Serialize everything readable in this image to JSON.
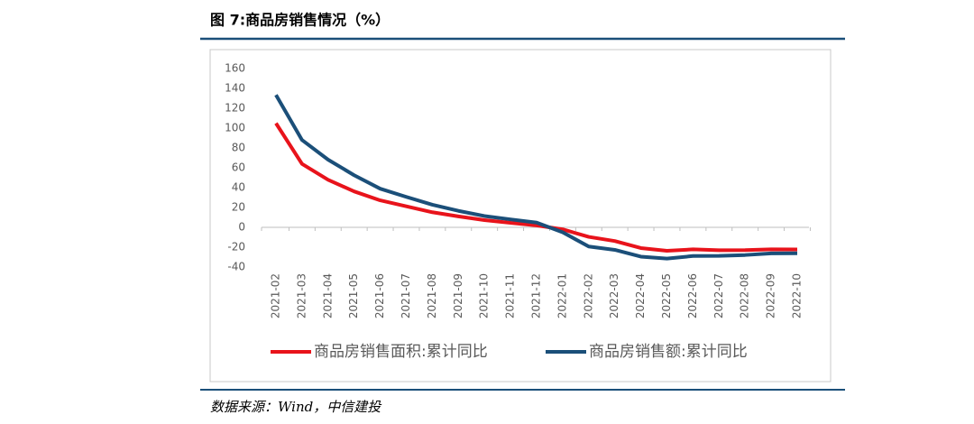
{
  "chart_data": {
    "type": "line",
    "title": "图 7:商品房销售情况（%）",
    "source": "数据来源：Wind，中信建投",
    "categories": [
      "2021-02",
      "2021-03",
      "2021-04",
      "2021-05",
      "2021-06",
      "2021-07",
      "2021-08",
      "2021-09",
      "2021-10",
      "2021-11",
      "2021-12",
      "2022-01",
      "2022-02",
      "2022-03",
      "2022-04",
      "2022-05",
      "2022-06",
      "2022-07",
      "2022-08",
      "2022-09",
      "2022-10"
    ],
    "series": [
      {
        "name": "商品房销售面积:累计同比",
        "color": "#e8131b",
        "values": [
          104.9,
          63.9,
          47.9,
          36.2,
          27.2,
          21.2,
          15.2,
          11.0,
          7.3,
          4.5,
          1.9,
          -2,
          -9.6,
          -13.8,
          -20.9,
          -23.6,
          -22.2,
          -23.1,
          -23.0,
          -22.2,
          -22.3
        ]
      },
      {
        "name": "商品房销售额:累计同比",
        "color": "#1b4f79",
        "values": [
          133.4,
          88.0,
          68.2,
          52.5,
          38.9,
          30.7,
          22.8,
          16.6,
          11.4,
          8.0,
          4.8,
          -5,
          -19.3,
          -22.7,
          -29.5,
          -31.5,
          -28.9,
          -28.8,
          -27.9,
          -26.3,
          -26.1
        ]
      }
    ],
    "ylim": [
      -40,
      160
    ],
    "yticks": [
      -40,
      -20,
      0,
      20,
      40,
      60,
      80,
      100,
      120,
      140,
      160
    ],
    "legend": "bottom"
  }
}
